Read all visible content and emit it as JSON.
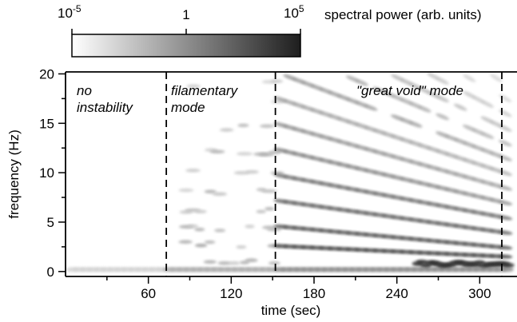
{
  "chart_data": {
    "type": "heatmap",
    "title": "",
    "xlabel": "time (sec)",
    "ylabel": "frequency (Hz)",
    "xlim": [
      0,
      327
    ],
    "ylim": [
      -0.5,
      20.2
    ],
    "x_ticks": [
      60,
      120,
      180,
      240,
      300
    ],
    "y_ticks": [
      0,
      5,
      10,
      15,
      20
    ],
    "colorbar": {
      "label": "spectral power (arb. units)",
      "scale": "log",
      "min_label": "10",
      "min_exp": "-5",
      "mid_label": "1",
      "max_label": "10",
      "max_exp": "5",
      "colors": [
        "#ffffff",
        "#202020"
      ]
    },
    "mode_boundaries": [
      73,
      152,
      316
    ],
    "regions": [
      {
        "label_lines": [
          "no",
          "instability"
        ]
      },
      {
        "label_lines": [
          "filamentary",
          "mode"
        ]
      },
      {
        "label_lines": [
          "\"great void\" mode"
        ]
      }
    ],
    "harmonics": {
      "onset_time": 152,
      "end_time": 320,
      "count": 7,
      "start_spacing_hz": 2.6,
      "end_spacing_hz": 1.5,
      "note": "each harmonic n: f = n * spacing(t), spacing decreasing linearly with time; dominant power near f < 2 Hz late in run"
    }
  }
}
